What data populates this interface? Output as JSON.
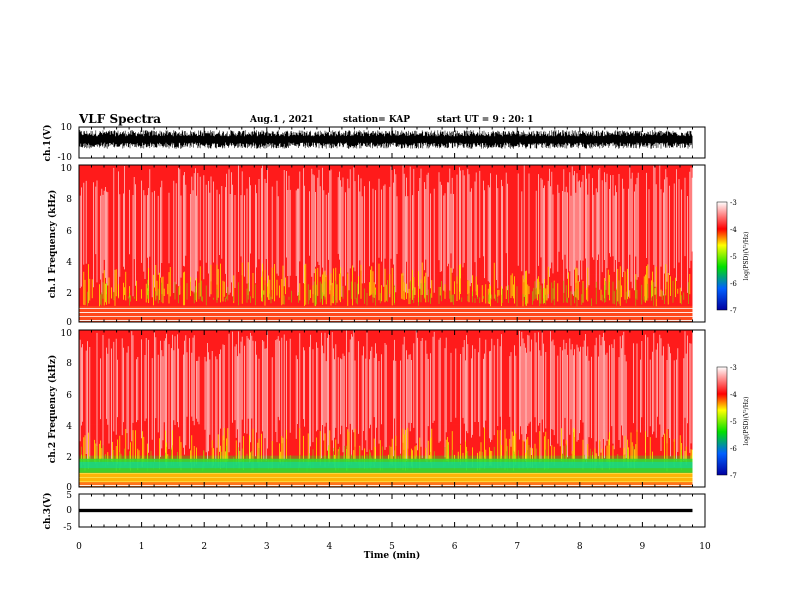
{
  "header": {
    "title": "VLF Spectra",
    "date": "Aug.1 , 2021",
    "station": "station= KAP",
    "start": "start UT = 9 : 20: 1"
  },
  "colors": {
    "spectrum_low": "#0000a0",
    "spectrum_mid": "#00e000",
    "spectrum_warm": "#ffff00",
    "spectrum_high": "#ff0000",
    "spectrum_max": "#ffffff"
  },
  "chart_data": [
    {
      "type": "line",
      "panel": "waveform ch.1",
      "ylabel": "ch.1(V)",
      "ylim": [
        -10,
        10
      ],
      "ytick_labels": [
        "10",
        "-10"
      ],
      "xlim": [
        0,
        10
      ],
      "description_values": {
        "typical_min": -4,
        "typical_max": 8
      }
    },
    {
      "type": "heatmap",
      "panel": "spectrogram ch.1",
      "ylabel": "ch.1 Frequency (kHz)",
      "ylim": [
        0,
        10
      ],
      "ytick_labels": [
        "0",
        "2",
        "4",
        "6",
        "8",
        "10"
      ],
      "xlim": [
        0,
        9.8
      ],
      "colorbar": {
        "label": "log(PSD)(V²/Hz)",
        "range": [
          -7,
          -3
        ],
        "tick_labels": [
          "-3",
          "-4",
          "-5",
          "-6",
          "-7"
        ]
      },
      "bands": [
        {
          "from_khz": 0.0,
          "to_khz": 1.0,
          "level": -4.2
        },
        {
          "from_khz": 1.0,
          "to_khz": 3.0,
          "level": -3.9
        },
        {
          "from_khz": 3.0,
          "to_khz": 5.5,
          "level": -4.0
        },
        {
          "from_khz": 5.5,
          "to_khz": 10.0,
          "level": -4.1
        }
      ]
    },
    {
      "type": "heatmap",
      "panel": "spectrogram ch.2",
      "ylabel": "ch.2 Frequency (kHz)",
      "ylim": [
        0,
        10
      ],
      "ytick_labels": [
        "0",
        "2",
        "4",
        "6",
        "8",
        "10"
      ],
      "xlim": [
        0,
        9.8
      ],
      "colorbar": {
        "label": "log(PSD)(V²/Hz)",
        "range": [
          -7,
          -3
        ],
        "tick_labels": [
          "-3",
          "-4",
          "-5",
          "-6",
          "-7"
        ]
      },
      "bands": [
        {
          "from_khz": 0.0,
          "to_khz": 0.9,
          "level": -5.0
        },
        {
          "from_khz": 0.9,
          "to_khz": 2.0,
          "level": -5.5
        },
        {
          "from_khz": 2.0,
          "to_khz": 4.0,
          "level": -4.0
        },
        {
          "from_khz": 4.0,
          "to_khz": 10.0,
          "level": -4.1
        }
      ]
    },
    {
      "type": "line",
      "panel": "waveform ch.3",
      "ylabel": "ch.3(V)",
      "ylim": [
        -5,
        5
      ],
      "ytick_labels": [
        "5",
        "0",
        "-5"
      ],
      "xlim": [
        0,
        10
      ],
      "description_values": {
        "typical_min": -0.5,
        "typical_max": 0.5
      }
    }
  ],
  "xaxis": {
    "xlabel": "Time (min)",
    "xlim": [
      0,
      10
    ],
    "xtick_labels": [
      "0",
      "1",
      "2",
      "3",
      "4",
      "5",
      "6",
      "7",
      "8",
      "9",
      "10"
    ]
  }
}
